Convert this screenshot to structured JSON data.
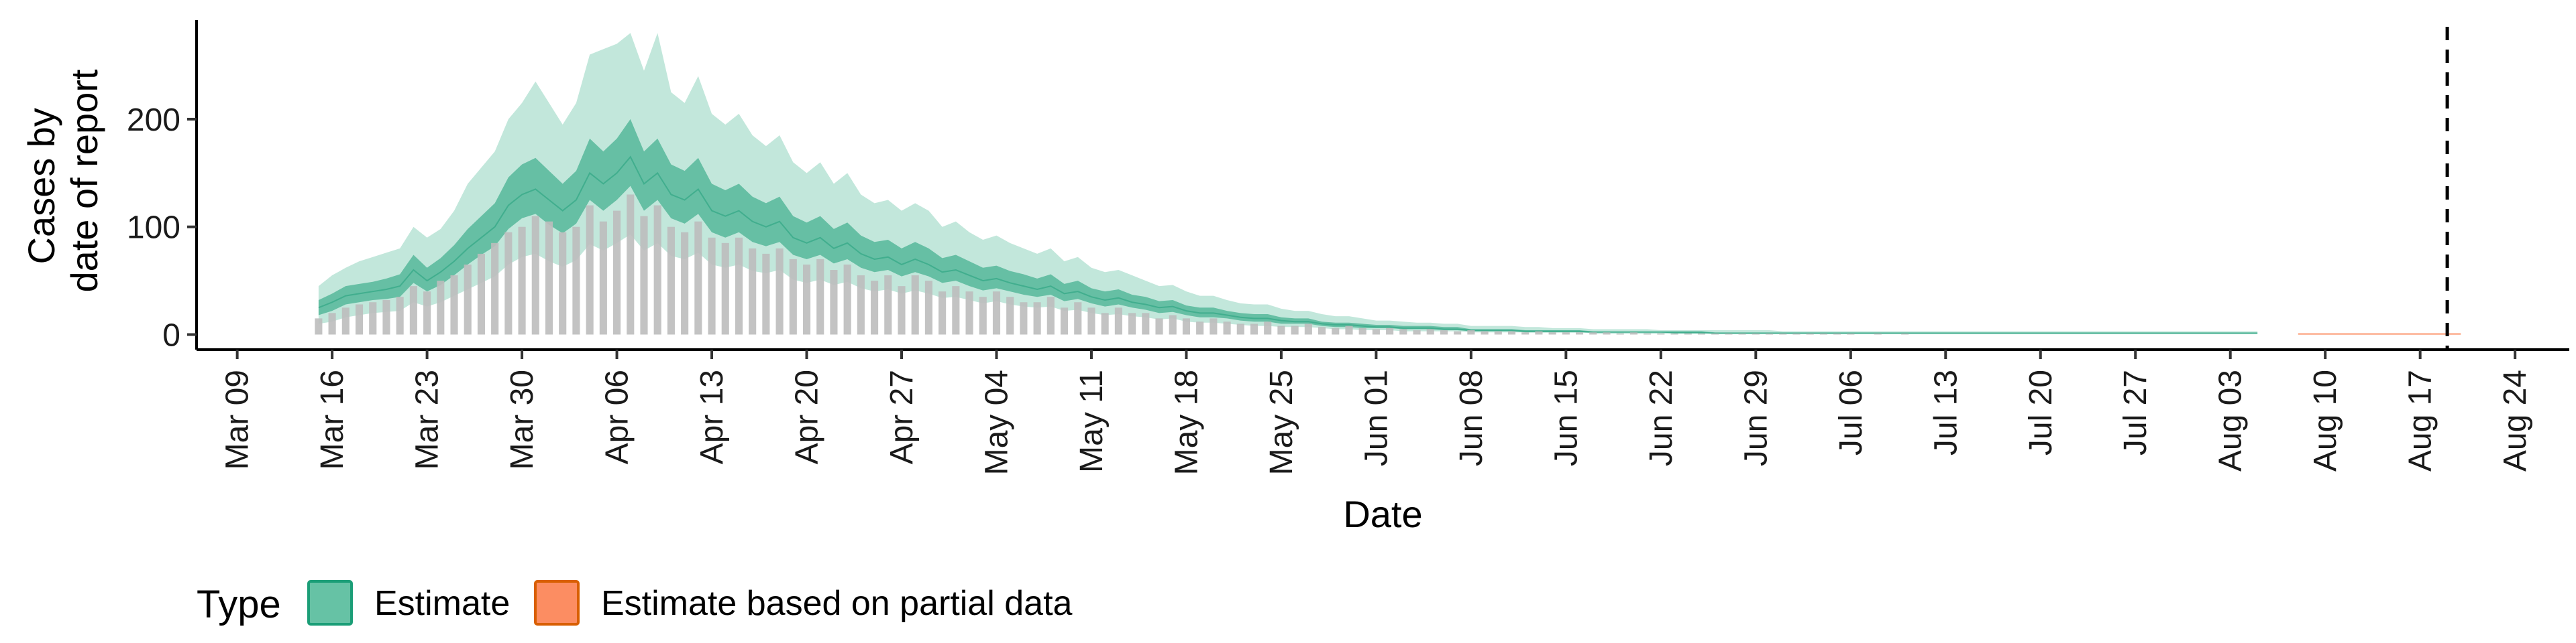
{
  "chart_data": {
    "type": "bar",
    "xlabel": "Date",
    "ylabel_lines": [
      "Cases by",
      "date of report"
    ],
    "ylim": [
      -14,
      292
    ],
    "y_ticks": [
      0,
      100,
      200
    ],
    "x_start_date": "2020-03-06",
    "x_end_date": "2020-08-28",
    "x_tick_labels": [
      "Mar 09",
      "Mar 16",
      "Mar 23",
      "Mar 30",
      "Apr 06",
      "Apr 13",
      "Apr 20",
      "Apr 27",
      "May 04",
      "May 11",
      "May 18",
      "May 25",
      "Jun 01",
      "Jun 08",
      "Jun 15",
      "Jun 22",
      "Jun 29",
      "Jul 06",
      "Jul 13",
      "Jul 20",
      "Jul 27",
      "Aug 03",
      "Aug 10",
      "Aug 17",
      "Aug 24"
    ],
    "x_tick_dates": [
      "2020-03-09",
      "2020-03-16",
      "2020-03-23",
      "2020-03-30",
      "2020-04-06",
      "2020-04-13",
      "2020-04-20",
      "2020-04-27",
      "2020-05-04",
      "2020-05-11",
      "2020-05-18",
      "2020-05-25",
      "2020-06-01",
      "2020-06-08",
      "2020-06-15",
      "2020-06-22",
      "2020-06-29",
      "2020-07-06",
      "2020-07-13",
      "2020-07-20",
      "2020-07-27",
      "2020-08-03",
      "2020-08-10",
      "2020-08-17",
      "2020-08-24"
    ],
    "reference_line_date": "2020-08-19",
    "observed_cases": {
      "start_date": "2020-03-15",
      "values": [
        15,
        20,
        25,
        28,
        30,
        32,
        35,
        45,
        40,
        50,
        55,
        65,
        75,
        85,
        95,
        100,
        110,
        105,
        95,
        100,
        120,
        105,
        115,
        130,
        110,
        120,
        100,
        95,
        105,
        90,
        85,
        90,
        80,
        75,
        80,
        70,
        65,
        70,
        60,
        65,
        55,
        50,
        55,
        45,
        55,
        50,
        40,
        45,
        40,
        35,
        40,
        35,
        30,
        30,
        35,
        25,
        30,
        25,
        20,
        25,
        20,
        20,
        15,
        18,
        15,
        12,
        15,
        12,
        10,
        10,
        12,
        8,
        8,
        10,
        7,
        6,
        8,
        6,
        5,
        6,
        5,
        4,
        5,
        4,
        3,
        4,
        3,
        3,
        3,
        2,
        3,
        2,
        2,
        2,
        2,
        2,
        1,
        2,
        1,
        1,
        1,
        1,
        1,
        1,
        1,
        1,
        1,
        1,
        1,
        1,
        1,
        1,
        1,
        1,
        0,
        1,
        0,
        1,
        0,
        0,
        0,
        0,
        0,
        0,
        0,
        0,
        0,
        0,
        0,
        0,
        0,
        0,
        0,
        0,
        0,
        0,
        0,
        0,
        0,
        0,
        0,
        0,
        0,
        0
      ]
    },
    "estimate": {
      "name": "Estimate",
      "color": "#66c2a5",
      "start_date": "2020-03-15",
      "median": [
        25,
        30,
        36,
        38,
        40,
        42,
        45,
        60,
        50,
        58,
        68,
        80,
        90,
        100,
        120,
        130,
        135,
        125,
        115,
        125,
        150,
        140,
        150,
        165,
        140,
        150,
        130,
        125,
        135,
        115,
        110,
        115,
        105,
        100,
        105,
        90,
        85,
        90,
        80,
        85,
        75,
        70,
        72,
        65,
        70,
        65,
        58,
        60,
        55,
        50,
        52,
        48,
        45,
        42,
        45,
        38,
        40,
        35,
        32,
        34,
        30,
        28,
        25,
        26,
        22,
        20,
        20,
        18,
        16,
        15,
        15,
        13,
        12,
        12,
        10,
        9,
        9,
        8,
        7,
        7,
        6,
        6,
        6,
        5,
        5,
        4,
        4,
        4,
        4,
        3,
        3,
        3,
        3,
        3,
        2,
        2,
        2,
        2,
        2,
        2,
        2,
        2,
        2,
        1,
        1,
        1,
        1,
        1,
        1,
        1,
        1,
        1,
        1,
        1,
        1,
        1,
        1,
        1,
        1,
        1,
        1,
        1,
        1,
        1,
        1,
        1,
        1,
        1,
        1,
        1,
        1,
        1,
        1,
        1,
        1,
        1,
        1,
        1,
        1,
        1,
        1,
        1,
        1,
        1
      ],
      "inner_lower": [
        18,
        22,
        28,
        30,
        32,
        33,
        35,
        48,
        40,
        46,
        55,
        65,
        74,
        82,
        98,
        108,
        112,
        102,
        94,
        103,
        125,
        115,
        125,
        138,
        115,
        125,
        108,
        103,
        112,
        95,
        90,
        95,
        86,
        82,
        86,
        74,
        70,
        74,
        66,
        70,
        62,
        58,
        60,
        54,
        58,
        54,
        48,
        50,
        45,
        41,
        43,
        40,
        37,
        35,
        37,
        31,
        33,
        29,
        26,
        28,
        25,
        23,
        20,
        21,
        18,
        16,
        16,
        15,
        13,
        12,
        12,
        10,
        10,
        10,
        8,
        7,
        7,
        6,
        6,
        6,
        5,
        5,
        5,
        4,
        4,
        3,
        3,
        3,
        3,
        2,
        2,
        2,
        2,
        2,
        2,
        2,
        2,
        2,
        2,
        2,
        1,
        1,
        1,
        1,
        1,
        1,
        1,
        1,
        1,
        1,
        1,
        1,
        1,
        1,
        1,
        1,
        1,
        1,
        1,
        1,
        1,
        1,
        1,
        1,
        1,
        1,
        1,
        1,
        1,
        1,
        1,
        1,
        1,
        1,
        1,
        1,
        1,
        1,
        1,
        1,
        1,
        1,
        1,
        1
      ],
      "inner_upper": [
        32,
        38,
        45,
        47,
        49,
        52,
        56,
        74,
        62,
        71,
        83,
        98,
        110,
        122,
        146,
        158,
        164,
        152,
        140,
        152,
        182,
        170,
        182,
        200,
        170,
        182,
        158,
        152,
        164,
        140,
        134,
        140,
        128,
        122,
        128,
        110,
        104,
        110,
        98,
        104,
        92,
        86,
        88,
        80,
        86,
        80,
        71,
        74,
        68,
        62,
        64,
        59,
        56,
        52,
        56,
        47,
        50,
        43,
        40,
        42,
        37,
        35,
        31,
        32,
        27,
        25,
        25,
        22,
        20,
        19,
        19,
        16,
        15,
        15,
        12,
        11,
        11,
        10,
        9,
        9,
        8,
        8,
        8,
        7,
        7,
        5,
        5,
        5,
        5,
        4,
        4,
        4,
        4,
        4,
        3,
        3,
        3,
        3,
        3,
        3,
        3,
        3,
        3,
        2,
        2,
        2,
        2,
        2,
        2,
        2,
        2,
        2,
        2,
        2,
        2,
        2,
        2,
        2,
        2,
        2,
        2,
        2,
        2,
        2,
        2,
        2,
        2,
        2,
        2,
        2,
        2,
        2,
        2,
        2,
        2,
        2,
        2,
        2,
        2,
        2,
        2,
        2,
        2,
        2
      ],
      "outer_lower": [
        10,
        12,
        16,
        18,
        20,
        21,
        22,
        30,
        26,
        30,
        36,
        42,
        48,
        54,
        65,
        72,
        75,
        68,
        63,
        69,
        84,
        78,
        85,
        93,
        78,
        85,
        73,
        70,
        76,
        65,
        62,
        65,
        59,
        57,
        60,
        51,
        48,
        51,
        46,
        49,
        43,
        40,
        42,
        38,
        41,
        38,
        34,
        35,
        32,
        29,
        31,
        28,
        26,
        25,
        26,
        22,
        23,
        20,
        18,
        19,
        17,
        16,
        14,
        15,
        12,
        11,
        11,
        10,
        9,
        8,
        8,
        7,
        7,
        7,
        6,
        5,
        5,
        4,
        4,
        4,
        3,
        3,
        3,
        3,
        3,
        2,
        2,
        2,
        2,
        2,
        2,
        2,
        2,
        2,
        1,
        1,
        1,
        1,
        1,
        1,
        1,
        1,
        1,
        1,
        1,
        1,
        1,
        1,
        1,
        1,
        1,
        1,
        1,
        1,
        1,
        1,
        1,
        1,
        1,
        1,
        1,
        1,
        1,
        1,
        1,
        1,
        1,
        1,
        1,
        1,
        1,
        1,
        1,
        1,
        1,
        1,
        1,
        1,
        1,
        1,
        1,
        1,
        1,
        1
      ],
      "outer_upper": [
        45,
        55,
        62,
        68,
        72,
        76,
        80,
        100,
        90,
        98,
        115,
        140,
        155,
        170,
        200,
        215,
        235,
        215,
        195,
        215,
        260,
        265,
        270,
        280,
        245,
        280,
        225,
        215,
        240,
        205,
        195,
        205,
        185,
        175,
        185,
        160,
        150,
        160,
        140,
        150,
        130,
        122,
        125,
        115,
        122,
        115,
        100,
        105,
        95,
        88,
        92,
        85,
        80,
        75,
        80,
        68,
        72,
        62,
        58,
        60,
        55,
        50,
        45,
        46,
        40,
        36,
        36,
        32,
        29,
        28,
        28,
        24,
        22,
        22,
        19,
        17,
        17,
        15,
        13,
        13,
        12,
        11,
        11,
        10,
        10,
        8,
        8,
        8,
        8,
        7,
        7,
        6,
        6,
        6,
        5,
        5,
        5,
        5,
        5,
        4,
        4,
        4,
        4,
        4,
        4,
        4,
        4,
        4,
        3,
        3,
        3,
        3,
        3,
        3,
        3,
        3,
        3,
        3,
        3,
        3,
        3,
        3,
        3,
        3,
        3,
        3,
        3,
        3,
        3,
        3,
        3,
        3,
        3,
        3,
        3,
        3,
        3,
        3,
        3,
        3,
        3,
        3,
        3,
        3
      ]
    },
    "partial_estimate": {
      "name": "Estimate based on partial data",
      "color": "#fc8d62",
      "start_date": "2020-08-08",
      "end_date": "2020-08-20",
      "median": 1,
      "upper": 1.5
    },
    "bar_color": "#bdbdbd",
    "legend": {
      "title": "Type",
      "items": [
        {
          "label": "Estimate",
          "fill": "#66c2a5",
          "border": "#1b9e77"
        },
        {
          "label": "Estimate based on partial data",
          "fill": "#fc8d62",
          "border": "#d95f02"
        }
      ]
    }
  }
}
